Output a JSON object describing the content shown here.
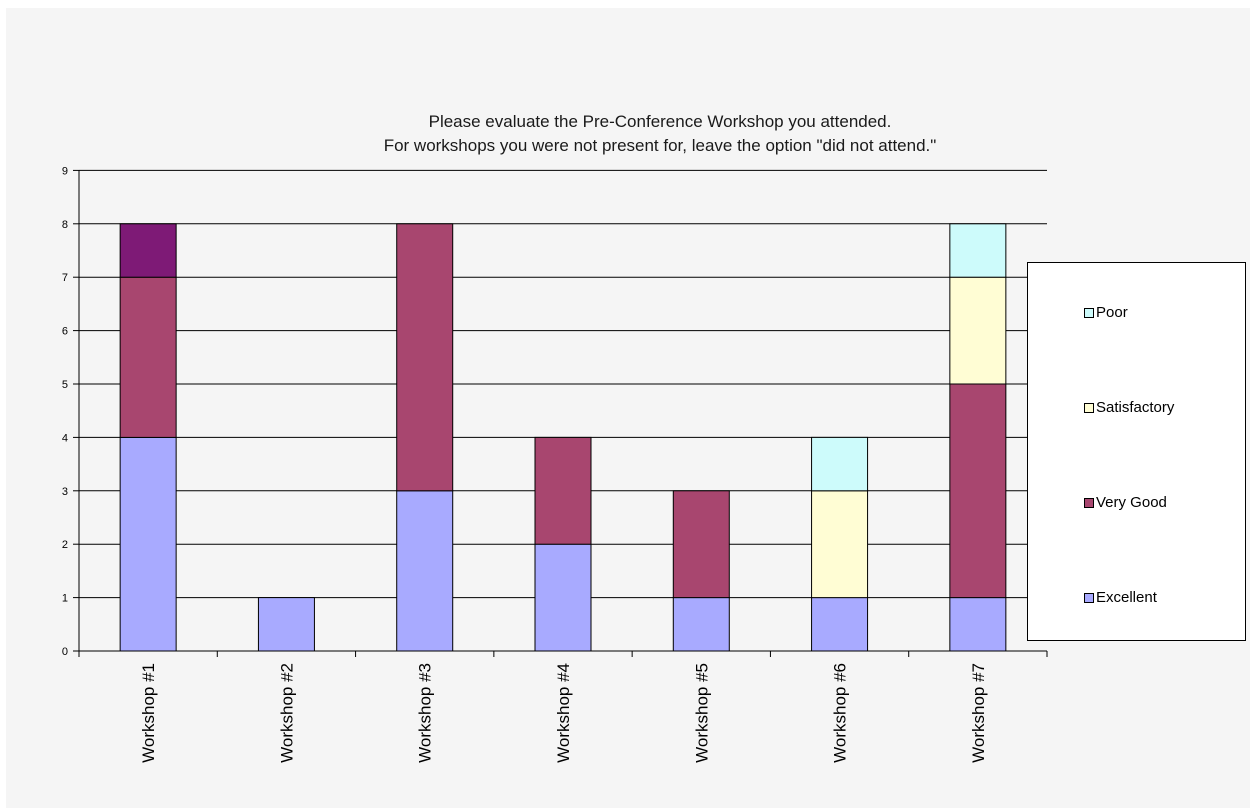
{
  "chart_data": {
    "type": "bar",
    "stacked": true,
    "title_lines": [
      "Please evaluate the Pre-Conference Workshop you attended.",
      "For workshops you were not present for, leave the option \"did not attend.\""
    ],
    "categories": [
      "Workshop #1",
      "Workshop #2",
      "Workshop #3",
      "Workshop #4",
      "Workshop #5",
      "Workshop #6",
      "Workshop #7"
    ],
    "series": [
      {
        "name": "Excellent",
        "color": "#a8aaff",
        "values": [
          4,
          1,
          3,
          2,
          1,
          1,
          1
        ]
      },
      {
        "name": "Very Good",
        "color": "#a8466f",
        "values": [
          3,
          0,
          5,
          2,
          2,
          0,
          4
        ]
      },
      {
        "name": "Satisfactory",
        "color": "#fffdd4",
        "values": [
          0,
          0,
          0,
          0,
          0,
          2,
          2
        ]
      },
      {
        "name": "Poor",
        "color": "#cdfbfb",
        "values": [
          0,
          0,
          0,
          0,
          0,
          1,
          1
        ]
      },
      {
        "name": "",
        "color": "#7e1a76",
        "values": [
          1,
          0,
          0,
          0,
          0,
          0,
          0
        ]
      }
    ],
    "ylim": [
      0,
      9
    ],
    "yticks": [
      0,
      1,
      2,
      3,
      4,
      5,
      6,
      7,
      8,
      9
    ],
    "grid": true,
    "legend_position": "right",
    "legend_order": [
      "Poor",
      "Satisfactory",
      "Very Good",
      "Excellent"
    ]
  }
}
